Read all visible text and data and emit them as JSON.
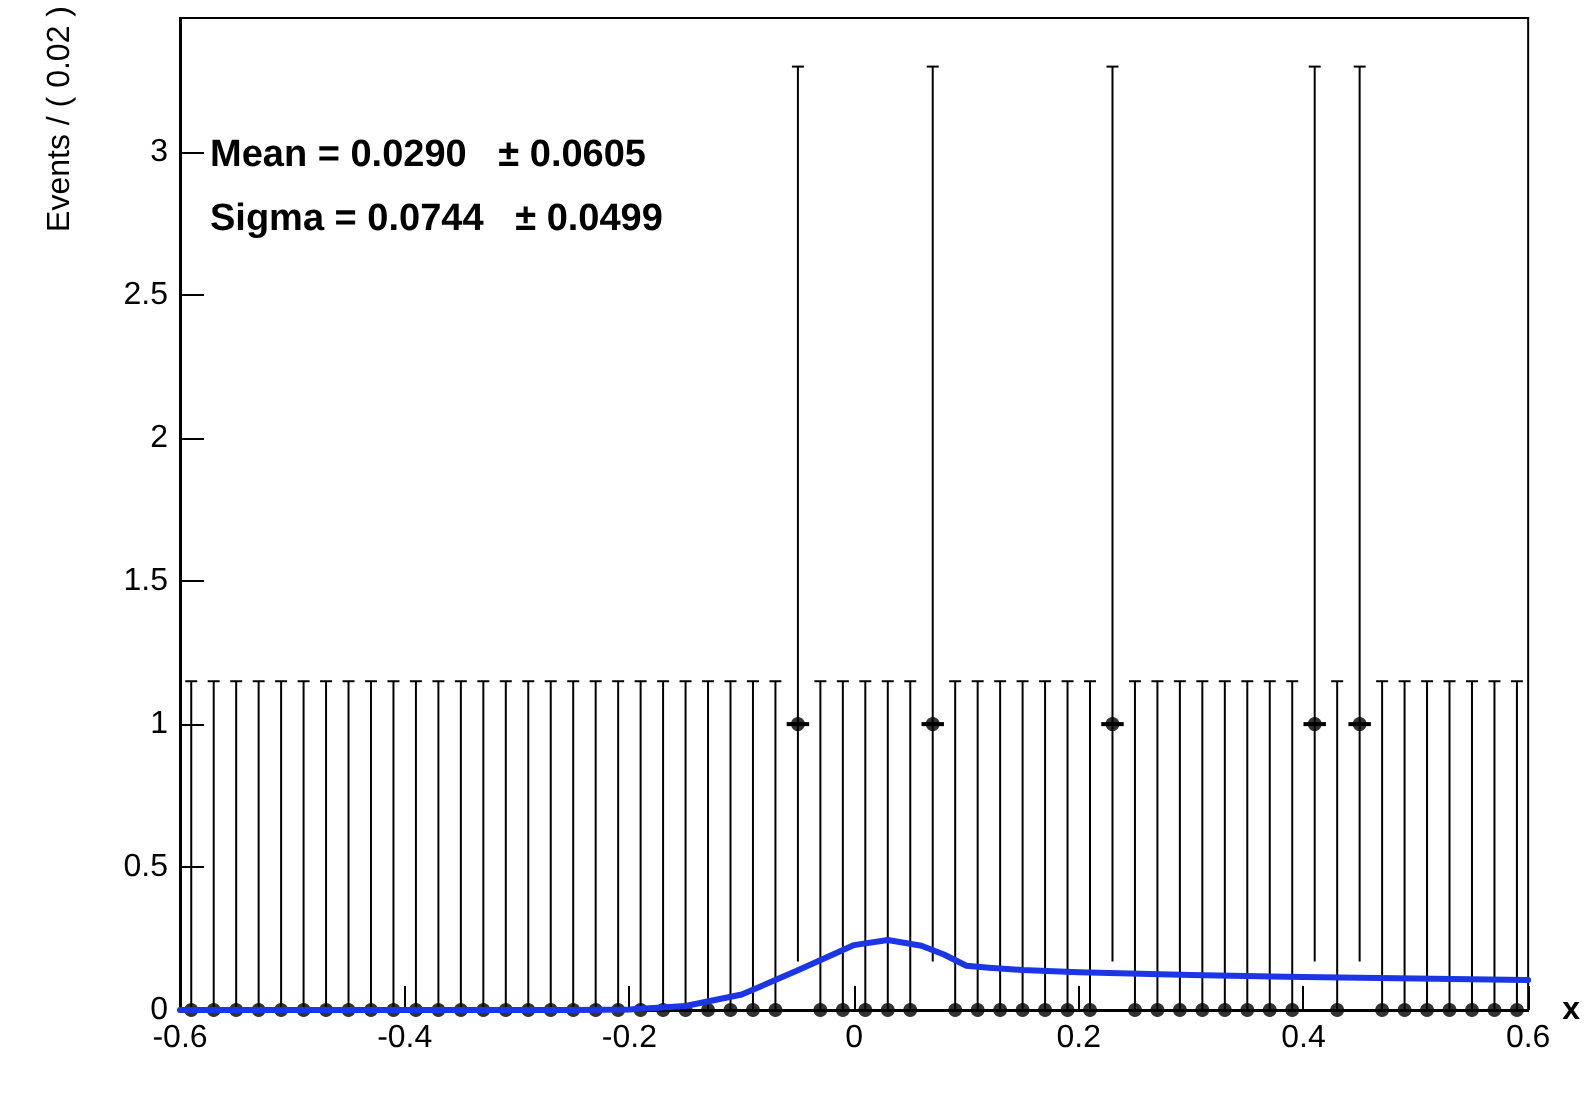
{
  "chart_data": {
    "type": "scatter",
    "xlabel": "x",
    "ylabel": "Events / ( 0.02 )",
    "marker": "circle",
    "grid": false,
    "annotations": [
      "Mean = 0.0290   ± 0.0605",
      "Sigma = 0.0744   ± 0.0499"
    ],
    "xlim": [
      -0.6,
      0.6
    ],
    "xticks": [
      -0.6,
      -0.4,
      -0.2,
      0,
      0.2,
      0.4,
      0.6
    ],
    "ylim": [
      0,
      3.47
    ],
    "yticks": [
      0,
      0.5,
      1,
      1.5,
      2,
      2.5,
      3
    ],
    "series": [
      {
        "color": "#000000",
        "x": [
          -0.59,
          -0.57,
          -0.55,
          -0.53,
          -0.51,
          -0.49,
          -0.47,
          -0.45,
          -0.43,
          -0.41,
          -0.39,
          -0.37,
          -0.35,
          -0.33,
          -0.31,
          -0.29,
          -0.27,
          -0.25,
          -0.23,
          -0.21,
          -0.19,
          -0.17,
          -0.15,
          -0.13,
          -0.11,
          -0.09,
          -0.07,
          -0.05,
          -0.03,
          -0.01,
          0.01,
          0.03,
          0.05,
          0.07,
          0.09,
          0.11,
          0.13,
          0.15,
          0.17,
          0.19,
          0.21,
          0.23,
          0.25,
          0.27,
          0.29,
          0.31,
          0.33,
          0.35,
          0.37,
          0.39,
          0.41,
          0.43,
          0.45,
          0.47,
          0.49,
          0.51,
          0.53,
          0.55,
          0.57,
          0.59
        ],
        "values": [
          0,
          0,
          0,
          0,
          0,
          0,
          0,
          0,
          0,
          0,
          0,
          0,
          0,
          0,
          0,
          0,
          0,
          0,
          0,
          0,
          0,
          0,
          0,
          0,
          0,
          0,
          0,
          1,
          0,
          0,
          0,
          0,
          0,
          1,
          0,
          0,
          0,
          0,
          0,
          0,
          0,
          1,
          0,
          0,
          0,
          0,
          0,
          0,
          0,
          0,
          1,
          0,
          1,
          0,
          0,
          0,
          0,
          0,
          0,
          0
        ],
        "errors": [
          [
            0,
            1.15
          ],
          [
            0,
            1.15
          ],
          [
            0,
            1.15
          ],
          [
            0,
            1.15
          ],
          [
            0,
            1.15
          ],
          [
            0,
            1.15
          ],
          [
            0,
            1.15
          ],
          [
            0,
            1.15
          ],
          [
            0,
            1.15
          ],
          [
            0,
            1.15
          ],
          [
            0,
            1.15
          ],
          [
            0,
            1.15
          ],
          [
            0,
            1.15
          ],
          [
            0,
            1.15
          ],
          [
            0,
            1.15
          ],
          [
            0,
            1.15
          ],
          [
            0,
            1.15
          ],
          [
            0,
            1.15
          ],
          [
            0,
            1.15
          ],
          [
            0,
            1.15
          ],
          [
            0,
            1.15
          ],
          [
            0,
            1.15
          ],
          [
            0,
            1.15
          ],
          [
            0,
            1.15
          ],
          [
            0,
            1.15
          ],
          [
            0,
            1.15
          ],
          [
            0,
            1.15
          ],
          [
            0.17,
            3.3
          ],
          [
            0,
            1.15
          ],
          [
            0,
            1.15
          ],
          [
            0,
            1.15
          ],
          [
            0,
            1.15
          ],
          [
            0,
            1.15
          ],
          [
            0.17,
            3.3
          ],
          [
            0,
            1.15
          ],
          [
            0,
            1.15
          ],
          [
            0,
            1.15
          ],
          [
            0,
            1.15
          ],
          [
            0,
            1.15
          ],
          [
            0,
            1.15
          ],
          [
            0,
            1.15
          ],
          [
            0.17,
            3.3
          ],
          [
            0,
            1.15
          ],
          [
            0,
            1.15
          ],
          [
            0,
            1.15
          ],
          [
            0,
            1.15
          ],
          [
            0,
            1.15
          ],
          [
            0,
            1.15
          ],
          [
            0,
            1.15
          ],
          [
            0,
            1.15
          ],
          [
            0.17,
            3.3
          ],
          [
            0,
            1.15
          ],
          [
            0.17,
            3.3
          ],
          [
            0,
            1.15
          ],
          [
            0,
            1.15
          ],
          [
            0,
            1.15
          ],
          [
            0,
            1.15
          ],
          [
            0,
            1.15
          ],
          [
            0,
            1.15
          ],
          [
            0,
            1.15
          ]
        ],
        "xerrors": [
          null,
          null,
          null,
          null,
          null,
          null,
          null,
          null,
          null,
          null,
          null,
          null,
          null,
          null,
          null,
          null,
          null,
          null,
          null,
          null,
          null,
          null,
          null,
          null,
          null,
          null,
          null,
          0.01,
          null,
          null,
          null,
          null,
          null,
          0.01,
          null,
          null,
          null,
          null,
          null,
          null,
          null,
          0.01,
          null,
          null,
          null,
          null,
          null,
          null,
          null,
          null,
          0.01,
          null,
          0.01,
          null,
          null,
          null,
          null,
          null,
          null,
          null
        ]
      },
      {
        "type": "line",
        "color": "#1c36e6",
        "marker": "none",
        "line_style": "solid",
        "x": [
          -0.6,
          -0.25,
          -0.2,
          -0.15,
          -0.1,
          -0.05,
          0,
          0.03,
          0.06,
          0.08,
          0.1,
          0.12,
          0.15,
          0.2,
          0.3,
          0.4,
          0.5,
          0.6
        ],
        "values": [
          0,
          0,
          0.002,
          0.014,
          0.054,
          0.139,
          0.227,
          0.245,
          0.225,
          0.194,
          0.155,
          0.148,
          0.14,
          0.132,
          0.122,
          0.115,
          0.11,
          0.105
        ]
      }
    ]
  }
}
